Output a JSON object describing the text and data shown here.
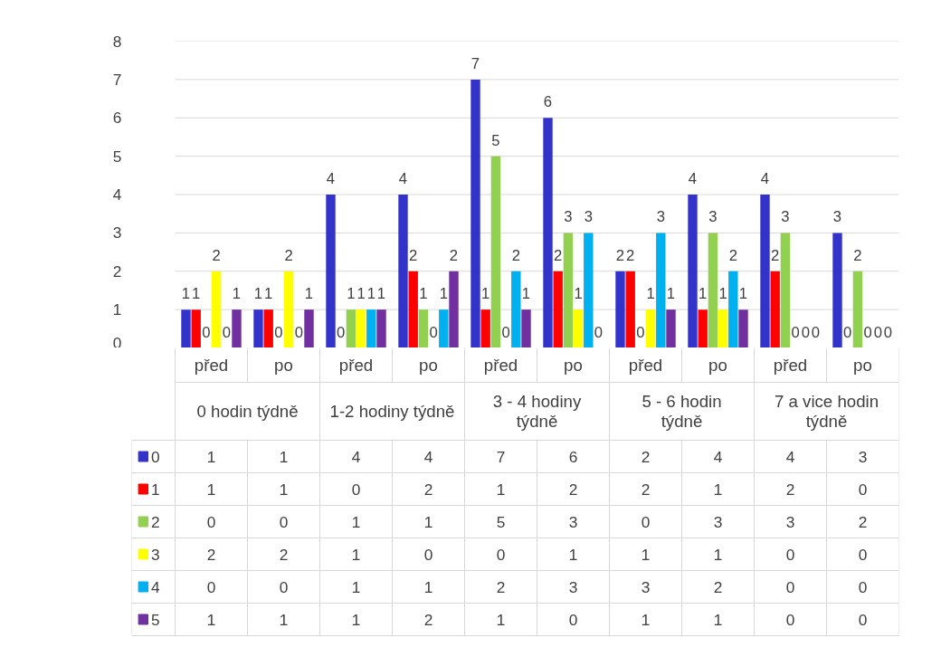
{
  "chart_data": {
    "type": "bar",
    "categories": [
      "před",
      "po",
      "před",
      "po",
      "před",
      "po",
      "před",
      "po",
      "před",
      "po"
    ],
    "annotations": [
      "0 hodin týdně",
      "1-2 hodiny týdně",
      "3 - 4 hodiny týdně",
      "5 - 6 hodin týdně",
      "7 a vice hodin týdně"
    ],
    "series": [
      {
        "name": "0",
        "color": "#3333cc",
        "values": [
          1,
          1,
          4,
          4,
          7,
          6,
          2,
          4,
          4,
          3
        ],
        "value_labels": [
          "1",
          "1",
          "4",
          "4",
          "7",
          "6",
          "2",
          "4",
          "4",
          "3"
        ]
      },
      {
        "name": "1",
        "color": "#ff0000",
        "values": [
          1,
          1,
          0,
          2,
          1,
          2,
          2,
          1,
          2,
          0
        ],
        "value_labels": [
          "1",
          "1",
          "0",
          "2",
          "1",
          "2",
          "2",
          "1",
          "2",
          "0"
        ]
      },
      {
        "name": "2",
        "color": "#92d050",
        "values": [
          0,
          0,
          1,
          1,
          5,
          3,
          0,
          3,
          3,
          2
        ],
        "value_labels": [
          "0",
          "0",
          "1",
          "1",
          "5",
          "3",
          "0",
          "3",
          "3",
          "2"
        ]
      },
      {
        "name": "3",
        "color": "#ffff00",
        "values": [
          2,
          2,
          1,
          0,
          0,
          1,
          1,
          1,
          0,
          0
        ],
        "value_labels": [
          "2",
          "2",
          "1",
          "0",
          "0",
          "1",
          "1",
          "1",
          "0",
          "0"
        ]
      },
      {
        "name": "4",
        "color": "#00b0f0",
        "values": [
          0,
          0,
          1,
          1,
          2,
          3,
          3,
          2,
          0,
          0
        ],
        "value_labels": [
          "0",
          "0",
          "1",
          "1",
          "2",
          "3",
          "3",
          "2",
          "0",
          "0"
        ]
      },
      {
        "name": "5",
        "color": "#7030a0",
        "values": [
          1,
          1,
          1,
          2,
          1,
          0,
          1,
          1,
          0,
          0
        ],
        "value_labels": [
          "1",
          "1",
          "1",
          "2",
          "1",
          "0",
          "1",
          "1",
          "0",
          "0"
        ]
      }
    ],
    "ylim": [
      0,
      8
    ],
    "yticks": [
      0,
      1,
      2,
      3,
      4,
      5,
      6,
      7,
      8
    ],
    "grid": "y",
    "data_labels": true,
    "legend": "bottom"
  }
}
